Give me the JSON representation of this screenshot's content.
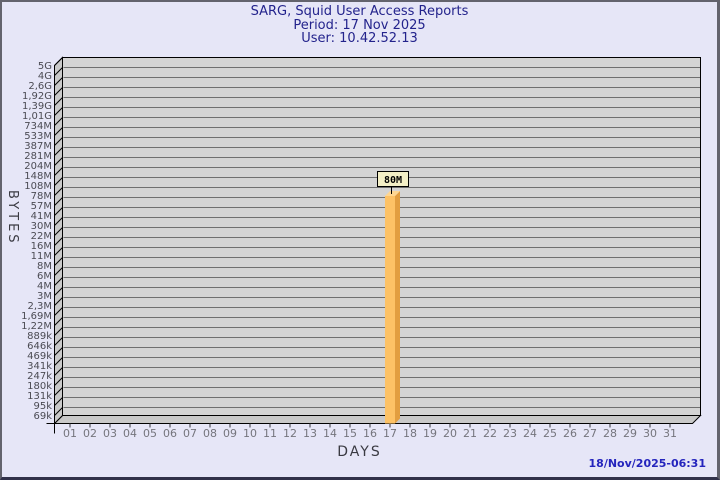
{
  "header": {
    "title": "SARG, Squid User Access Reports",
    "period": "Period: 17 Nov 2025",
    "user": "User: 10.42.52.13"
  },
  "footer": {
    "timestamp": "18/Nov/2025-06:31"
  },
  "chart_data": {
    "type": "bar",
    "style": "3d",
    "title": "SARG, Squid User Access Reports",
    "subtitle1": "Period: 17 Nov 2025",
    "subtitle2": "User: 10.42.52.13",
    "xlabel": "DAYS",
    "ylabel": "BYTES",
    "y_scale": "log",
    "ylim": [
      "69k",
      "5G"
    ],
    "grid": true,
    "legend": null,
    "y_tick_labels": [
      "5G",
      "4G",
      "2,6G",
      "1,92G",
      "1,39G",
      "1,01G",
      "734M",
      "533M",
      "387M",
      "281M",
      "204M",
      "148M",
      "108M",
      "78M",
      "57M",
      "41M",
      "30M",
      "22M",
      "16M",
      "11M",
      "8M",
      "6M",
      "4M",
      "3M",
      "2,3M",
      "1,69M",
      "1,22M",
      "889k",
      "646k",
      "469k",
      "341k",
      "247k",
      "180k",
      "131k",
      "95k",
      "69k"
    ],
    "x_tick_labels": [
      "01",
      "02",
      "03",
      "04",
      "05",
      "06",
      "07",
      "08",
      "09",
      "10",
      "11",
      "12",
      "13",
      "14",
      "15",
      "16",
      "17",
      "18",
      "19",
      "20",
      "21",
      "22",
      "23",
      "24",
      "25",
      "26",
      "27",
      "28",
      "29",
      "30",
      "31"
    ],
    "bars": [
      {
        "day": "17",
        "value": "80M"
      }
    ],
    "colors": {
      "bar_front": "#fdc266",
      "bar_side": "#e29e40",
      "bar_top": "#fed691",
      "plot_bg": "#d4d4d4",
      "wall": "#c9c9c9",
      "grid": "#6f6f6f",
      "outline": "#000000",
      "value_box_bg": "#f3efc6",
      "y_tick_color": "#4b4b53",
      "x_tick_color": "#75757d"
    }
  }
}
